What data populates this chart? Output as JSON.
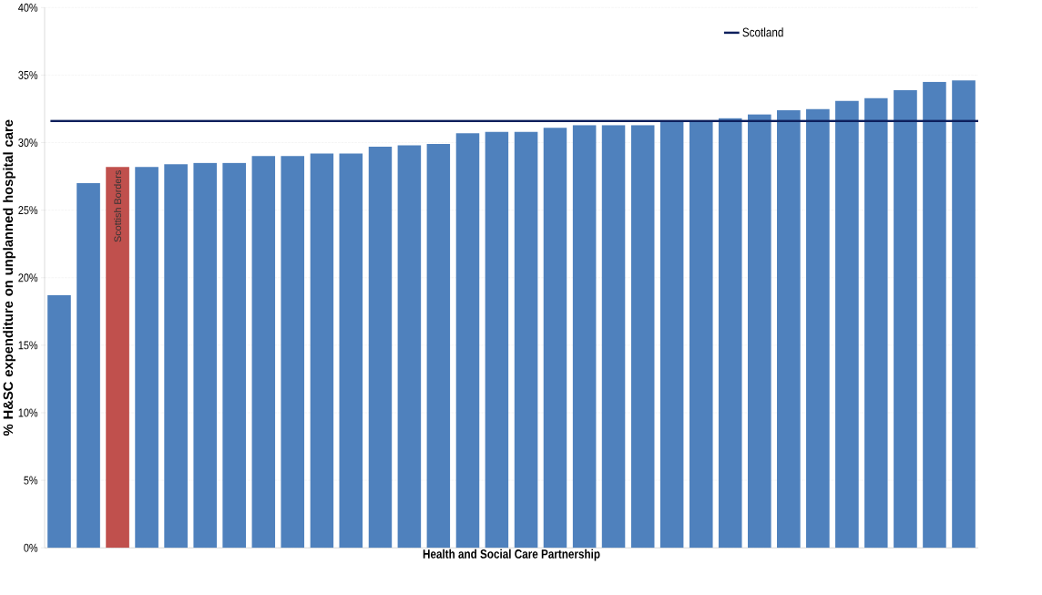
{
  "chart_data": {
    "type": "bar",
    "xlabel": "Health and Social Care Partnership",
    "ylabel": "% H&SC expenditure on unplanned hospital care",
    "categories": [
      null,
      null,
      "Scottish Borders",
      null,
      null,
      null,
      null,
      null,
      null,
      null,
      null,
      null,
      null,
      null,
      null,
      null,
      null,
      null,
      null,
      null,
      null,
      null,
      null,
      null,
      null,
      null,
      null,
      null,
      null,
      null,
      null,
      null
    ],
    "values": [
      18.7,
      27.0,
      28.2,
      28.2,
      28.4,
      28.5,
      28.5,
      29.0,
      29.0,
      29.2,
      29.2,
      29.7,
      29.8,
      29.9,
      30.7,
      30.8,
      30.8,
      31.1,
      31.3,
      31.3,
      31.3,
      31.6,
      31.6,
      31.8,
      32.1,
      32.4,
      32.5,
      33.1,
      33.3,
      33.9,
      34.5,
      34.6
    ],
    "colors": [
      "#4f81bd",
      "#4f81bd",
      "#c0504d",
      "#4f81bd",
      "#4f81bd",
      "#4f81bd",
      "#4f81bd",
      "#4f81bd",
      "#4f81bd",
      "#4f81bd",
      "#4f81bd",
      "#4f81bd",
      "#4f81bd",
      "#4f81bd",
      "#4f81bd",
      "#4f81bd",
      "#4f81bd",
      "#4f81bd",
      "#4f81bd",
      "#4f81bd",
      "#4f81bd",
      "#4f81bd",
      "#4f81bd",
      "#4f81bd",
      "#4f81bd",
      "#4f81bd",
      "#4f81bd",
      "#4f81bd",
      "#4f81bd",
      "#4f81bd",
      "#4f81bd",
      "#4f81bd"
    ],
    "ylim": [
      0,
      40
    ],
    "yticks": [
      {
        "value": 0,
        "label": "0%"
      },
      {
        "value": 5,
        "label": "5%"
      },
      {
        "value": 10,
        "label": "10%"
      },
      {
        "value": 15,
        "label": "15%"
      },
      {
        "value": 20,
        "label": "20%"
      },
      {
        "value": 25,
        "label": "25%"
      },
      {
        "value": 30,
        "label": "30%"
      },
      {
        "value": 35,
        "label": "35%"
      },
      {
        "value": 40,
        "label": "40%"
      }
    ],
    "ref_lines": [
      {
        "axis": "y",
        "value": 31.6,
        "label": "Scotland",
        "color": "#0d1f5c"
      }
    ],
    "grid": "y",
    "legend": "top right",
    "tick_labels": "y"
  }
}
